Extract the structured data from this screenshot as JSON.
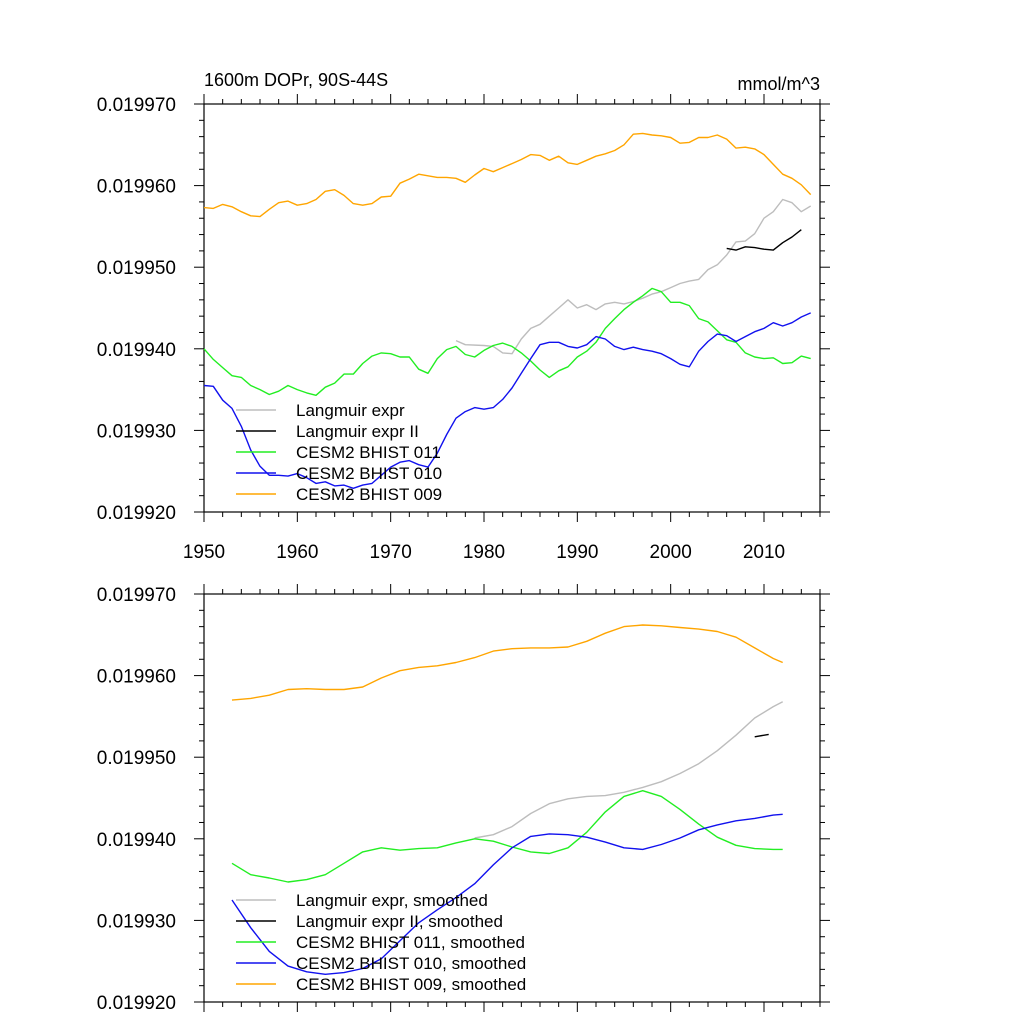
{
  "chart_data": [
    {
      "type": "line",
      "title_left": "1600m DOPr, 90S-44S",
      "title_right": "mmol/m^3",
      "xlim": [
        1950,
        2016
      ],
      "ylim": [
        0.01992,
        0.01997
      ],
      "x_ticks": [
        1950,
        1960,
        1970,
        1980,
        1990,
        2000,
        2010
      ],
      "x_tick_labels": [
        "1950",
        "1960",
        "1970",
        "1980",
        "1990",
        "2000",
        "2010"
      ],
      "y_ticks": [
        0.01992,
        0.01993,
        0.01994,
        0.01995,
        0.01996,
        0.01997
      ],
      "y_tick_labels": [
        "0.019920",
        "0.019930",
        "0.019940",
        "0.019950",
        "0.019960",
        "0.019970"
      ],
      "legend_position": "bottom-left",
      "series": [
        {
          "name": "Langmuir expr",
          "color": "#bdbdbd",
          "x": [
            1977,
            1978,
            1980,
            1981,
            1982,
            1983,
            1984,
            1985,
            1986,
            1987,
            1988,
            1989,
            1990,
            1991,
            1992,
            1993,
            1994,
            1995,
            1996,
            1997,
            1998,
            1999,
            2000,
            2001,
            2002,
            2003,
            2004,
            2005,
            2006,
            2007,
            2008,
            2009,
            2010,
            2011,
            2012,
            2013,
            2014,
            2015
          ],
          "y": [
            0.019941,
            0.0199405,
            0.0199404,
            0.0199403,
            0.0199395,
            0.0199394,
            0.0199412,
            0.0199425,
            0.019943,
            0.019944,
            0.019945,
            0.019946,
            0.019945,
            0.0199454,
            0.0199448,
            0.0199455,
            0.0199457,
            0.0199455,
            0.0199458,
            0.0199462,
            0.0199467,
            0.019947,
            0.0199475,
            0.019948,
            0.0199483,
            0.0199485,
            0.0199497,
            0.0199503,
            0.0199515,
            0.0199531,
            0.0199532,
            0.0199541,
            0.019956,
            0.0199568,
            0.0199583,
            0.0199579,
            0.0199568,
            0.0199575
          ]
        },
        {
          "name": "Langmuir expr II",
          "color": "#000000",
          "x": [
            2006,
            2007,
            2008,
            2009,
            2010,
            2011,
            2012,
            2013,
            2014
          ],
          "y": [
            0.0199523,
            0.0199521,
            0.0199525,
            0.0199524,
            0.0199522,
            0.0199521,
            0.019953,
            0.0199537,
            0.0199546
          ]
        },
        {
          "name": "CESM2 BHIST 011",
          "color": "#22ee22",
          "x": [
            1950,
            1951,
            1952,
            1953,
            1954,
            1955,
            1956,
            1957,
            1958,
            1959,
            1960,
            1961,
            1962,
            1963,
            1964,
            1965,
            1966,
            1967,
            1968,
            1969,
            1970,
            1971,
            1972,
            1973,
            1974,
            1975,
            1976,
            1977,
            1978,
            1979,
            1980,
            1981,
            1982,
            1983,
            1984,
            1985,
            1986,
            1987,
            1988,
            1989,
            1990,
            1991,
            1992,
            1993,
            1994,
            1995,
            1996,
            1997,
            1998,
            1999,
            2000,
            2001,
            2002,
            2003,
            2004,
            2005,
            2006,
            2007,
            2008,
            2009,
            2010,
            2011,
            2012,
            2013,
            2014,
            2015
          ],
          "y": [
            0.01994,
            0.0199387,
            0.0199377,
            0.0199367,
            0.0199365,
            0.0199355,
            0.019935,
            0.0199344,
            0.0199348,
            0.0199355,
            0.019935,
            0.0199346,
            0.0199343,
            0.0199353,
            0.0199358,
            0.0199369,
            0.0199369,
            0.0199382,
            0.0199391,
            0.0199395,
            0.0199394,
            0.019939,
            0.019939,
            0.0199375,
            0.019937,
            0.0199388,
            0.0199399,
            0.0199403,
            0.0199393,
            0.019939,
            0.0199398,
            0.0199404,
            0.0199407,
            0.0199403,
            0.0199395,
            0.0199385,
            0.0199374,
            0.0199365,
            0.0199373,
            0.0199378,
            0.019939,
            0.0199397,
            0.0199408,
            0.0199425,
            0.0199437,
            0.0199448,
            0.0199457,
            0.0199465,
            0.0199474,
            0.019947,
            0.0199457,
            0.0199457,
            0.0199453,
            0.0199437,
            0.0199433,
            0.0199422,
            0.0199411,
            0.0199408,
            0.0199395,
            0.019939,
            0.0199388,
            0.0199389,
            0.0199382,
            0.0199383,
            0.0199391,
            0.0199388
          ]
        },
        {
          "name": "CESM2 BHIST 010",
          "color": "#1111ee",
          "x": [
            1950,
            1951,
            1952,
            1953,
            1954,
            1955,
            1956,
            1957,
            1958,
            1959,
            1960,
            1961,
            1962,
            1963,
            1964,
            1965,
            1966,
            1967,
            1968,
            1969,
            1970,
            1971,
            1972,
            1973,
            1974,
            1975,
            1976,
            1977,
            1978,
            1979,
            1980,
            1981,
            1982,
            1983,
            1984,
            1985,
            1986,
            1987,
            1988,
            1989,
            1990,
            1991,
            1992,
            1993,
            1994,
            1995,
            1996,
            1997,
            1998,
            1999,
            2000,
            2001,
            2002,
            2003,
            2004,
            2005,
            2006,
            2007,
            2008,
            2009,
            2010,
            2011,
            2012,
            2013,
            2014,
            2015
          ],
          "y": [
            0.0199355,
            0.0199354,
            0.0199337,
            0.0199327,
            0.0199305,
            0.0199276,
            0.0199256,
            0.0199245,
            0.0199245,
            0.0199244,
            0.0199247,
            0.0199242,
            0.0199235,
            0.0199237,
            0.0199232,
            0.0199233,
            0.0199229,
            0.0199233,
            0.0199235,
            0.0199245,
            0.0199255,
            0.0199261,
            0.0199263,
            0.0199258,
            0.0199255,
            0.0199272,
            0.0199295,
            0.0199315,
            0.0199323,
            0.0199328,
            0.0199326,
            0.0199328,
            0.0199338,
            0.0199352,
            0.019937,
            0.0199388,
            0.0199405,
            0.0199408,
            0.0199408,
            0.0199403,
            0.0199401,
            0.0199405,
            0.0199415,
            0.0199412,
            0.0199403,
            0.0199399,
            0.0199402,
            0.0199399,
            0.0199397,
            0.0199394,
            0.0199388,
            0.0199381,
            0.0199378,
            0.0199397,
            0.0199409,
            0.0199418,
            0.0199416,
            0.0199409,
            0.0199415,
            0.0199421,
            0.0199425,
            0.0199432,
            0.0199428,
            0.0199432,
            0.0199439,
            0.0199444
          ]
        },
        {
          "name": "CESM2 BHIST 009",
          "color": "#ffa500",
          "x": [
            1950,
            1951,
            1952,
            1953,
            1954,
            1955,
            1956,
            1957,
            1958,
            1959,
            1960,
            1961,
            1962,
            1963,
            1964,
            1965,
            1966,
            1967,
            1968,
            1969,
            1970,
            1971,
            1972,
            1973,
            1974,
            1975,
            1976,
            1977,
            1978,
            1979,
            1980,
            1981,
            1982,
            1983,
            1984,
            1985,
            1986,
            1987,
            1988,
            1989,
            1990,
            1991,
            1992,
            1993,
            1994,
            1995,
            1996,
            1997,
            1998,
            1999,
            2000,
            2001,
            2002,
            2003,
            2004,
            2005,
            2006,
            2007,
            2008,
            2009,
            2010,
            2011,
            2012,
            2013,
            2014,
            2015
          ],
          "y": [
            0.0199573,
            0.0199572,
            0.0199577,
            0.0199574,
            0.0199568,
            0.0199563,
            0.0199562,
            0.0199571,
            0.0199579,
            0.0199581,
            0.0199576,
            0.0199578,
            0.0199583,
            0.0199593,
            0.0199595,
            0.0199588,
            0.0199578,
            0.0199576,
            0.0199578,
            0.0199586,
            0.0199587,
            0.0199603,
            0.0199608,
            0.0199614,
            0.0199612,
            0.019961,
            0.019961,
            0.0199609,
            0.0199604,
            0.0199613,
            0.0199621,
            0.0199617,
            0.0199622,
            0.0199627,
            0.0199632,
            0.0199638,
            0.0199637,
            0.0199631,
            0.0199636,
            0.0199628,
            0.0199626,
            0.0199631,
            0.0199636,
            0.0199639,
            0.0199643,
            0.019965,
            0.0199663,
            0.0199664,
            0.0199662,
            0.0199661,
            0.0199659,
            0.0199652,
            0.0199653,
            0.0199659,
            0.0199659,
            0.0199662,
            0.0199657,
            0.0199646,
            0.0199647,
            0.0199645,
            0.0199638,
            0.0199626,
            0.0199614,
            0.0199609,
            0.0199601,
            0.0199589
          ]
        }
      ]
    },
    {
      "type": "line",
      "xlim": [
        1950,
        2016
      ],
      "ylim": [
        0.01992,
        0.01997
      ],
      "x_ticks": [
        1950,
        1960,
        1970,
        1980,
        1990,
        2000,
        2010
      ],
      "y_ticks": [
        0.01992,
        0.01993,
        0.01994,
        0.01995,
        0.01996,
        0.01997
      ],
      "y_tick_labels": [
        "0.019920",
        "0.019930",
        "0.019940",
        "0.019950",
        "0.019960",
        "0.019970"
      ],
      "legend_position": "bottom-left",
      "series": [
        {
          "name": "Langmuir expr, smoothed",
          "color": "#bdbdbd",
          "x": [
            1979,
            1981,
            1983,
            1985,
            1987,
            1989,
            1991,
            1993,
            1995,
            1997,
            1999,
            2001,
            2003,
            2005,
            2007,
            2009,
            2011,
            2012
          ],
          "y": [
            0.0199401,
            0.0199405,
            0.0199415,
            0.0199431,
            0.0199443,
            0.0199449,
            0.0199452,
            0.0199453,
            0.0199457,
            0.0199463,
            0.019947,
            0.019948,
            0.0199492,
            0.0199508,
            0.0199527,
            0.0199548,
            0.0199562,
            0.0199568
          ]
        },
        {
          "name": "Langmuir expr II, smoothed",
          "color": "#000000",
          "x": [
            2009,
            2010.5
          ],
          "y": [
            0.0199525,
            0.0199528
          ]
        },
        {
          "name": "CESM2 BHIST 011, smoothed",
          "color": "#22ee22",
          "x": [
            1953,
            1955,
            1957,
            1959,
            1961,
            1963,
            1965,
            1967,
            1969,
            1971,
            1973,
            1975,
            1977,
            1979,
            1981,
            1983,
            1985,
            1987,
            1989,
            1991,
            1993,
            1995,
            1997,
            1999,
            2001,
            2003,
            2005,
            2007,
            2009,
            2011,
            2012
          ],
          "y": [
            0.019937,
            0.0199356,
            0.0199352,
            0.0199347,
            0.019935,
            0.0199356,
            0.019937,
            0.0199384,
            0.0199389,
            0.0199386,
            0.0199388,
            0.0199389,
            0.0199395,
            0.01994,
            0.0199397,
            0.019939,
            0.0199384,
            0.0199382,
            0.0199389,
            0.0199408,
            0.0199433,
            0.0199452,
            0.0199459,
            0.0199452,
            0.0199436,
            0.0199418,
            0.0199402,
            0.0199392,
            0.0199388,
            0.0199387,
            0.0199387
          ]
        },
        {
          "name": "CESM2 BHIST 010, smoothed",
          "color": "#1111ee",
          "x": [
            1953,
            1955,
            1957,
            1959,
            1961,
            1963,
            1965,
            1967,
            1969,
            1971,
            1973,
            1975,
            1977,
            1979,
            1981,
            1983,
            1985,
            1987,
            1989,
            1991,
            1993,
            1995,
            1997,
            1999,
            2001,
            2003,
            2005,
            2007,
            2009,
            2011,
            2012
          ],
          "y": [
            0.0199325,
            0.0199291,
            0.0199262,
            0.0199244,
            0.0199237,
            0.0199234,
            0.0199236,
            0.0199241,
            0.0199253,
            0.0199275,
            0.0199297,
            0.0199313,
            0.0199328,
            0.0199345,
            0.0199368,
            0.0199389,
            0.0199403,
            0.0199406,
            0.0199405,
            0.0199402,
            0.0199396,
            0.0199389,
            0.0199387,
            0.0199393,
            0.0199401,
            0.0199411,
            0.0199417,
            0.0199422,
            0.0199425,
            0.0199429,
            0.019943
          ]
        },
        {
          "name": "CESM2 BHIST 009, smoothed",
          "color": "#ffa500",
          "x": [
            1953,
            1955,
            1957,
            1959,
            1961,
            1963,
            1965,
            1967,
            1969,
            1971,
            1973,
            1975,
            1977,
            1979,
            1981,
            1983,
            1985,
            1987,
            1989,
            1991,
            1993,
            1995,
            1997,
            1999,
            2001,
            2003,
            2005,
            2007,
            2009,
            2011,
            2012
          ],
          "y": [
            0.019957,
            0.0199572,
            0.0199576,
            0.0199583,
            0.0199584,
            0.0199583,
            0.0199583,
            0.0199586,
            0.0199597,
            0.0199606,
            0.019961,
            0.0199612,
            0.0199616,
            0.0199622,
            0.019963,
            0.0199633,
            0.0199634,
            0.0199634,
            0.0199635,
            0.0199642,
            0.0199652,
            0.019966,
            0.0199662,
            0.0199661,
            0.0199659,
            0.0199657,
            0.0199654,
            0.0199647,
            0.0199634,
            0.0199621,
            0.0199616
          ]
        }
      ]
    }
  ]
}
